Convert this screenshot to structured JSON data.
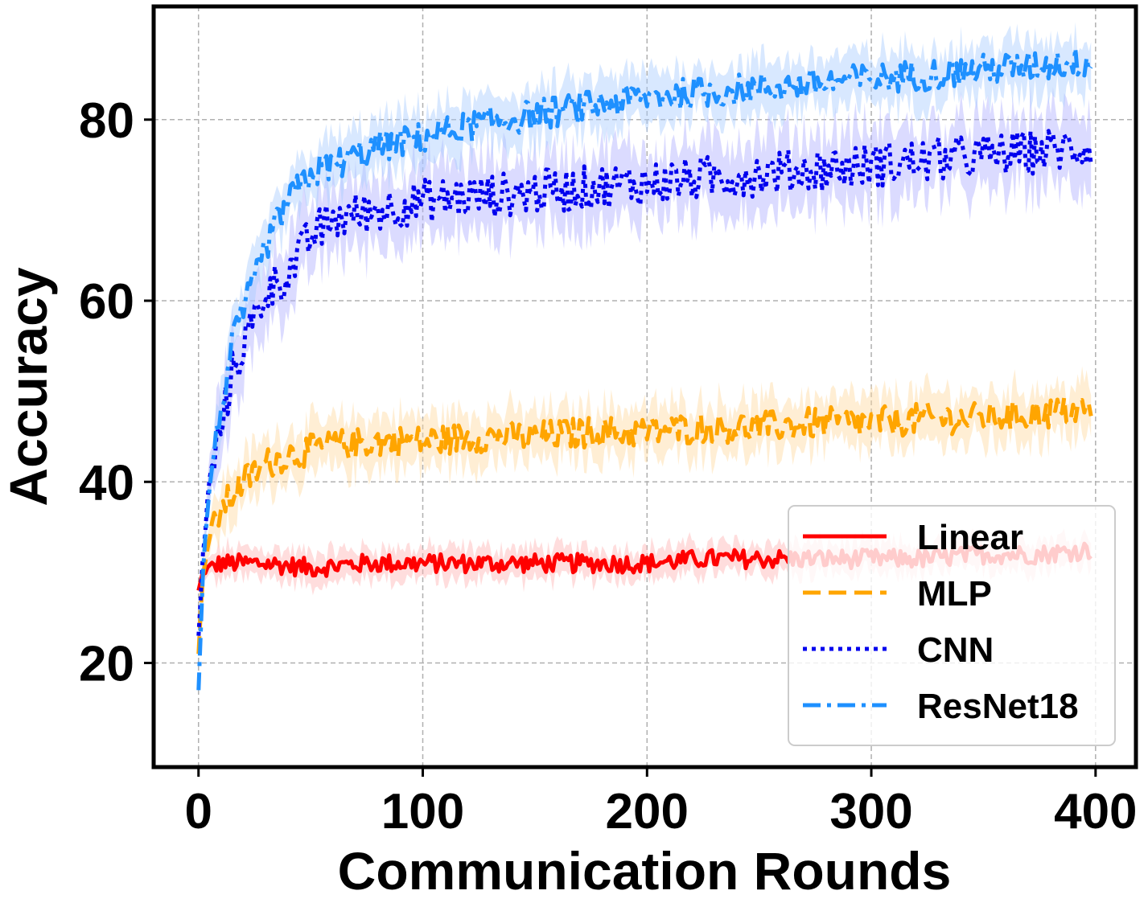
{
  "chart_data": {
    "type": "line",
    "title": "",
    "xlabel": "Communication Rounds",
    "ylabel": "Accuracy",
    "xlim": [
      -20,
      418
    ],
    "ylim": [
      8.5,
      92.5
    ],
    "xticks": [
      0,
      100,
      200,
      300,
      400
    ],
    "yticks": [
      20,
      40,
      60,
      80
    ],
    "grid": true,
    "legend_position": "lower-right",
    "series": [
      {
        "name": "Linear",
        "color": "#ff0000",
        "linestyle": "solid",
        "band_color": "#ffb3b3",
        "x": [
          0,
          2,
          5,
          10,
          20,
          30,
          50,
          75,
          100,
          125,
          150,
          175,
          200,
          225,
          250,
          275,
          300,
          325,
          350,
          375,
          398
        ],
        "y": [
          28,
          30,
          30.5,
          31,
          31,
          31,
          30.5,
          31,
          31,
          31,
          31,
          31,
          31,
          31.5,
          31.5,
          31.5,
          31.5,
          31.5,
          32,
          32,
          32.5
        ],
        "spread": 1.5
      },
      {
        "name": "MLP",
        "color": "#ffa500",
        "linestyle": "dashed",
        "band_color": "#ffd9a0",
        "x": [
          0,
          2,
          5,
          10,
          20,
          30,
          40,
          60,
          80,
          100,
          125,
          150,
          175,
          200,
          225,
          250,
          275,
          300,
          325,
          350,
          375,
          398
        ],
        "y": [
          21,
          30,
          34,
          37,
          40,
          42,
          43,
          44,
          44.5,
          44.5,
          45,
          45,
          45.5,
          45.5,
          46,
          46,
          46.5,
          46.5,
          47,
          47,
          47.5,
          48
        ],
        "spread": 2.5
      },
      {
        "name": "CNN",
        "color": "#0000ee",
        "linestyle": "dotted",
        "band_color": "#b0b0ff",
        "x": [
          0,
          2,
          5,
          10,
          15,
          20,
          25,
          30,
          40,
          50,
          60,
          80,
          100,
          125,
          150,
          175,
          200,
          225,
          250,
          275,
          300,
          325,
          350,
          375,
          398
        ],
        "y": [
          23,
          32,
          40,
          46,
          52,
          55,
          58,
          61,
          63,
          67,
          69,
          70,
          71,
          71.5,
          72,
          72.5,
          73,
          73.5,
          74,
          74.5,
          75,
          75.5,
          76,
          76.5,
          77
        ],
        "spread": 3.5
      },
      {
        "name": "ResNet18",
        "color": "#1e90ff",
        "linestyle": "dashdot",
        "band_color": "#a8ccff",
        "x": [
          0,
          2,
          5,
          10,
          15,
          20,
          25,
          30,
          40,
          50,
          60,
          80,
          100,
          125,
          150,
          175,
          200,
          225,
          250,
          275,
          300,
          325,
          350,
          375,
          398
        ],
        "y": [
          17,
          30,
          40,
          48,
          55,
          59,
          62,
          66,
          71,
          74,
          75,
          77,
          78,
          79.5,
          80.5,
          81.5,
          82.5,
          83,
          83.5,
          84,
          84.5,
          85,
          85.5,
          86,
          86.5
        ],
        "spread": 2.5
      }
    ]
  }
}
